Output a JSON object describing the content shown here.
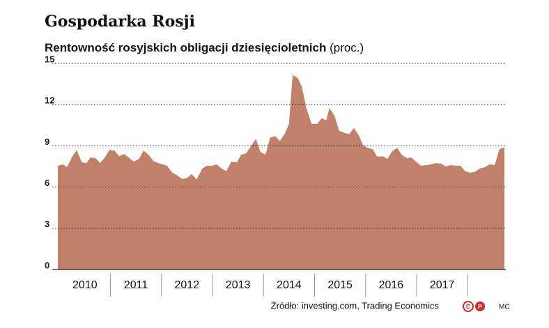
{
  "chart_data": {
    "type": "area",
    "title": "Gospodarka Rosji",
    "subtitle": "Rentowność rosyjskich obligacji dziesięcioletnich",
    "unit": "(proc.)",
    "source": "Źródło: investing.com, Trading Economics",
    "logo": [
      "C",
      "P"
    ],
    "credit": "MC",
    "color": "#c0806a",
    "grid": true,
    "ylim": [
      0,
      15
    ],
    "yticks": [
      0,
      3,
      6,
      9,
      12,
      15
    ],
    "xlim": [
      2009.97,
      2018.72
    ],
    "xticks": [
      {
        "value": 2010.5,
        "label": "2010"
      },
      {
        "value": 2011.5,
        "label": "2011"
      },
      {
        "value": 2012.5,
        "label": "2012"
      },
      {
        "value": 2013.5,
        "label": "2013"
      },
      {
        "value": 2014.5,
        "label": "2014"
      },
      {
        "value": 2015.5,
        "label": "2015"
      },
      {
        "value": 2016.5,
        "label": "2016"
      },
      {
        "value": 2017.5,
        "label": "2017"
      }
    ],
    "x": [
      2009.97,
      2010.07,
      2010.15,
      2010.25,
      2010.34,
      2010.44,
      2010.53,
      2010.61,
      2010.71,
      2010.8,
      2010.89,
      2010.98,
      2011.08,
      2011.17,
      2011.27,
      2011.36,
      2011.46,
      2011.56,
      2011.65,
      2011.75,
      2011.84,
      2011.94,
      2012.11,
      2012.21,
      2012.31,
      2012.4,
      2012.5,
      2012.59,
      2012.69,
      2012.8,
      2012.89,
      2012.99,
      2013.08,
      2013.18,
      2013.27,
      2013.37,
      2013.48,
      2013.56,
      2013.66,
      2013.75,
      2013.85,
      2013.94,
      2014.04,
      2014.13,
      2014.23,
      2014.32,
      2014.42,
      2014.5,
      2014.57,
      2014.67,
      2014.75,
      2014.84,
      2014.94,
      2015.05,
      2015.14,
      2015.23,
      2015.29,
      2015.39,
      2015.48,
      2015.58,
      2015.68,
      2015.77,
      2015.87,
      2015.95,
      2016.04,
      2016.14,
      2016.23,
      2016.33,
      2016.43,
      2016.52,
      2016.62,
      2016.71,
      2016.81,
      2016.9,
      2017.0,
      2017.09,
      2017.19,
      2017.29,
      2017.38,
      2017.48,
      2017.57,
      2017.67,
      2017.76,
      2017.86,
      2017.95,
      2018.05,
      2018.14,
      2018.24,
      2018.34,
      2018.43,
      2018.53,
      2018.62,
      2018.72
    ],
    "values": [
      7.55,
      7.65,
      7.45,
      8.2,
      8.7,
      7.8,
      7.75,
      8.15,
      8.1,
      7.75,
      8.15,
      8.7,
      8.65,
      8.25,
      8.4,
      8.15,
      7.85,
      8.05,
      8.65,
      8.35,
      7.9,
      7.75,
      7.55,
      7.05,
      6.85,
      6.6,
      6.65,
      6.95,
      6.55,
      7.35,
      7.55,
      7.55,
      7.65,
      7.35,
      7.15,
      7.85,
      7.8,
      8.35,
      8.45,
      8.95,
      9.5,
      8.55,
      8.35,
      9.6,
      9.7,
      9.35,
      9.9,
      10.6,
      14.15,
      13.95,
      13.3,
      11.75,
      10.6,
      10.6,
      11.0,
      10.85,
      11.75,
      11.2,
      10.1,
      9.95,
      9.85,
      10.3,
      9.75,
      9.05,
      8.85,
      8.75,
      8.2,
      8.25,
      8.05,
      8.6,
      8.85,
      8.35,
      8.1,
      8.15,
      7.8,
      7.55,
      7.6,
      7.65,
      7.75,
      7.7,
      7.5,
      7.6,
      7.55,
      7.55,
      7.15,
      7.05,
      7.1,
      7.35,
      7.45,
      7.65,
      7.6,
      8.75,
      8.9
    ]
  }
}
